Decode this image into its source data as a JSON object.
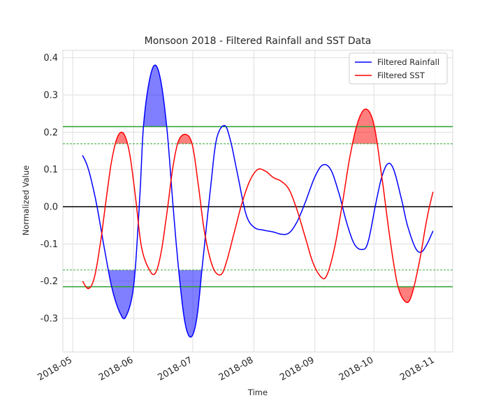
{
  "chart_data": {
    "type": "line",
    "title": "Monsoon 2018 - Filtered Rainfall and SST Data",
    "xlabel": "Time",
    "ylabel": "Normalized Value",
    "x_ticks": [
      "2018-05",
      "2018-06",
      "2018-07",
      "2018-08",
      "2018-09",
      "2018-10",
      "2018-11"
    ],
    "x_range": [
      "2018-04-26",
      "2018-11-10"
    ],
    "ylim": [
      -0.39,
      0.42
    ],
    "y_ticks": [
      -0.3,
      -0.2,
      -0.1,
      0.0,
      0.1,
      0.2,
      0.3,
      0.4
    ],
    "grid": true,
    "legend_position": "top-right",
    "threshold_lines": [
      {
        "y": 0.215,
        "style": "solid",
        "color": "#2ca02c"
      },
      {
        "y": -0.215,
        "style": "solid",
        "color": "#2ca02c"
      },
      {
        "y": 0.169,
        "style": "dashed",
        "color": "#2ca02c"
      },
      {
        "y": -0.17,
        "style": "dashed",
        "color": "#2ca02c"
      },
      {
        "y": 0.0,
        "style": "solid",
        "color": "#000000"
      }
    ],
    "series": [
      {
        "name": "Filtered Rainfall",
        "color": "#0000ff",
        "fill_color": "#0000ff",
        "fill_threshold": 0.215,
        "fill_threshold_negative": -0.17,
        "points": [
          [
            "2018-05-06",
            0.138
          ],
          [
            "2018-05-09",
            0.1
          ],
          [
            "2018-05-13",
            0.01
          ],
          [
            "2018-05-17",
            -0.11
          ],
          [
            "2018-05-21",
            -0.22
          ],
          [
            "2018-05-25",
            -0.285
          ],
          [
            "2018-05-28",
            -0.295
          ],
          [
            "2018-06-01",
            -0.21
          ],
          [
            "2018-06-04",
            0.02
          ],
          [
            "2018-06-06",
            0.22
          ],
          [
            "2018-06-09",
            0.34
          ],
          [
            "2018-06-12",
            0.38
          ],
          [
            "2018-06-15",
            0.33
          ],
          [
            "2018-06-18",
            0.2
          ],
          [
            "2018-06-21",
            0.0
          ],
          [
            "2018-06-24",
            -0.18
          ],
          [
            "2018-06-27",
            -0.31
          ],
          [
            "2018-06-30",
            -0.35
          ],
          [
            "2018-07-03",
            -0.3
          ],
          [
            "2018-07-06",
            -0.15
          ],
          [
            "2018-07-10",
            0.05
          ],
          [
            "2018-07-13",
            0.18
          ],
          [
            "2018-07-17",
            0.218
          ],
          [
            "2018-07-20",
            0.18
          ],
          [
            "2018-07-24",
            0.08
          ],
          [
            "2018-07-28",
            -0.02
          ],
          [
            "2018-08-01",
            -0.055
          ],
          [
            "2018-08-06",
            -0.063
          ],
          [
            "2018-08-11",
            -0.068
          ],
          [
            "2018-08-15",
            -0.074
          ],
          [
            "2018-08-19",
            -0.07
          ],
          [
            "2018-08-23",
            -0.04
          ],
          [
            "2018-08-27",
            0.01
          ],
          [
            "2018-09-01",
            0.08
          ],
          [
            "2018-09-05",
            0.112
          ],
          [
            "2018-09-09",
            0.1
          ],
          [
            "2018-09-13",
            0.04
          ],
          [
            "2018-09-17",
            -0.04
          ],
          [
            "2018-09-21",
            -0.1
          ],
          [
            "2018-09-25",
            -0.115
          ],
          [
            "2018-09-28",
            -0.095
          ],
          [
            "2018-10-02",
            0.01
          ],
          [
            "2018-10-05",
            0.08
          ],
          [
            "2018-10-08",
            0.115
          ],
          [
            "2018-10-11",
            0.1
          ],
          [
            "2018-10-15",
            0.02
          ],
          [
            "2018-10-18",
            -0.05
          ],
          [
            "2018-10-22",
            -0.11
          ],
          [
            "2018-10-25",
            -0.122
          ],
          [
            "2018-10-28",
            -0.1
          ],
          [
            "2018-10-31",
            -0.065
          ]
        ]
      },
      {
        "name": "Filtered SST",
        "color": "#ff0000",
        "fill_color": "#ff0000",
        "fill_threshold": 0.169,
        "fill_threshold_negative": -0.215,
        "points": [
          [
            "2018-05-06",
            -0.2
          ],
          [
            "2018-05-09",
            -0.22
          ],
          [
            "2018-05-12",
            -0.19
          ],
          [
            "2018-05-15",
            -0.1
          ],
          [
            "2018-05-18",
            0.02
          ],
          [
            "2018-05-21",
            0.13
          ],
          [
            "2018-05-24",
            0.19
          ],
          [
            "2018-05-27",
            0.195
          ],
          [
            "2018-05-30",
            0.14
          ],
          [
            "2018-06-02",
            0.02
          ],
          [
            "2018-06-05",
            -0.11
          ],
          [
            "2018-06-09",
            -0.17
          ],
          [
            "2018-06-12",
            -0.178
          ],
          [
            "2018-06-15",
            -0.12
          ],
          [
            "2018-06-18",
            -0.01
          ],
          [
            "2018-06-21",
            0.11
          ],
          [
            "2018-06-24",
            0.18
          ],
          [
            "2018-06-28",
            0.193
          ],
          [
            "2018-07-01",
            0.16
          ],
          [
            "2018-07-04",
            0.05
          ],
          [
            "2018-07-07",
            -0.07
          ],
          [
            "2018-07-11",
            -0.16
          ],
          [
            "2018-07-15",
            -0.183
          ],
          [
            "2018-07-18",
            -0.15
          ],
          [
            "2018-07-22",
            -0.07
          ],
          [
            "2018-07-26",
            0.01
          ],
          [
            "2018-07-30",
            0.07
          ],
          [
            "2018-08-03",
            0.1
          ],
          [
            "2018-08-07",
            0.095
          ],
          [
            "2018-08-11",
            0.078
          ],
          [
            "2018-08-15",
            0.068
          ],
          [
            "2018-08-19",
            0.045
          ],
          [
            "2018-08-23",
            -0.01
          ],
          [
            "2018-08-27",
            -0.08
          ],
          [
            "2018-08-31",
            -0.15
          ],
          [
            "2018-09-04",
            -0.188
          ],
          [
            "2018-09-07",
            -0.185
          ],
          [
            "2018-09-11",
            -0.11
          ],
          [
            "2018-09-15",
            0.01
          ],
          [
            "2018-09-19",
            0.14
          ],
          [
            "2018-09-23",
            0.23
          ],
          [
            "2018-09-27",
            0.262
          ],
          [
            "2018-10-01",
            0.22
          ],
          [
            "2018-10-05",
            0.08
          ],
          [
            "2018-10-09",
            -0.08
          ],
          [
            "2018-10-13",
            -0.21
          ],
          [
            "2018-10-17",
            -0.255
          ],
          [
            "2018-10-20",
            -0.24
          ],
          [
            "2018-10-24",
            -0.15
          ],
          [
            "2018-10-28",
            -0.03
          ],
          [
            "2018-10-31",
            0.04
          ]
        ]
      }
    ]
  }
}
